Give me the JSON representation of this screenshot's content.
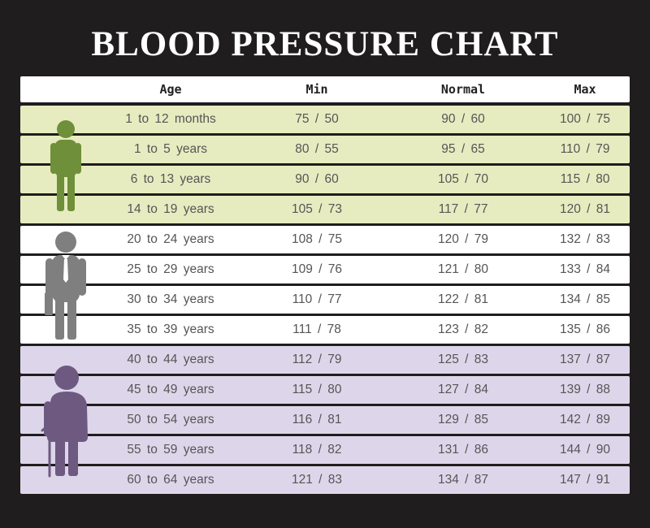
{
  "title": "BLOOD PRESSURE CHART",
  "columns": {
    "age": "Age",
    "min": "Min",
    "normal": "Normal",
    "max": "Max"
  },
  "colors": {
    "background": "#1f1d1d",
    "child_row": "#e7ecc0",
    "adult_row": "#ffffff",
    "senior_row": "#ddd6ea",
    "child_figure": "#6f8f3b",
    "adult_figure": "#7f7f7f",
    "senior_figure": "#6e5a80"
  },
  "icons": {
    "child": "child-figure-icon",
    "adult": "adult-figure-icon",
    "senior": "senior-figure-icon"
  },
  "rows": [
    {
      "group": "child",
      "age": "1 to 12 months",
      "min": "75 / 50",
      "normal": "90 / 60",
      "max": "100 / 75"
    },
    {
      "group": "child",
      "age": "1 to 5 years",
      "min": "80 / 55",
      "normal": "95 / 65",
      "max": "110 / 79"
    },
    {
      "group": "child",
      "age": "6 to 13 years",
      "min": "90 / 60",
      "normal": "105 / 70",
      "max": "115 / 80"
    },
    {
      "group": "child",
      "age": "14 to 19 years",
      "min": "105 / 73",
      "normal": "117 / 77",
      "max": "120 / 81"
    },
    {
      "group": "adult",
      "age": "20 to 24 years",
      "min": "108 / 75",
      "normal": "120 / 79",
      "max": "132 / 83"
    },
    {
      "group": "adult",
      "age": "25 to 29 years",
      "min": "109 / 76",
      "normal": "121 / 80",
      "max": "133 / 84"
    },
    {
      "group": "adult",
      "age": "30 to 34 years",
      "min": "110 / 77",
      "normal": "122 / 81",
      "max": "134 / 85"
    },
    {
      "group": "adult",
      "age": "35 to 39 years",
      "min": "111 / 78",
      "normal": "123 / 82",
      "max": "135 / 86"
    },
    {
      "group": "senior",
      "age": "40 to 44 years",
      "min": "112 / 79",
      "normal": "125 / 83",
      "max": "137 / 87"
    },
    {
      "group": "senior",
      "age": "45 to 49 years",
      "min": "115 / 80",
      "normal": "127 / 84",
      "max": "139 / 88"
    },
    {
      "group": "senior",
      "age": "50 to 54 years",
      "min": "116 / 81",
      "normal": "129 / 85",
      "max": "142 / 89"
    },
    {
      "group": "senior",
      "age": "55 to 59 years",
      "min": "118 / 82",
      "normal": "131 / 86",
      "max": "144 / 90"
    },
    {
      "group": "senior",
      "age": "60 to 64 years",
      "min": "121 / 83",
      "normal": "134 / 87",
      "max": "147 / 91"
    }
  ]
}
